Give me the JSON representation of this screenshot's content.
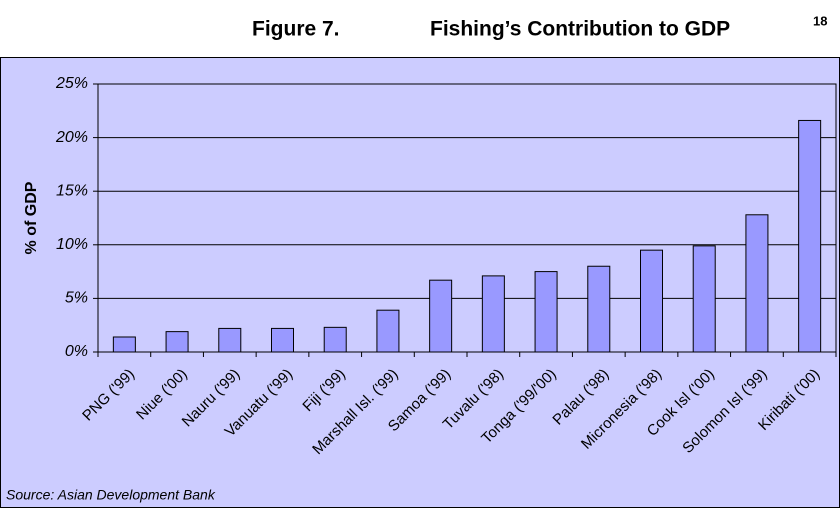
{
  "chart_data": {
    "type": "bar",
    "figure_label": "Figure 7.",
    "title": "Fishing’s Contribution to GDP",
    "title_footnote": "18",
    "ylabel": "% of GDP",
    "source": "Source: Asian Development Bank",
    "categories": [
      "PNG ('99)",
      "Niue ('00)",
      "Nauru ('99)",
      "Vanuatu ('99)",
      "Fiji ('99)",
      "Marshall Isl. ('99)",
      "Samoa ('99)",
      "Tuvalu ('98)",
      "Tonga ('99/'00)",
      "Palau ('98)",
      "Micronesia ('98)",
      "Cook Isl ('00)",
      "Solomon Isl ('99)",
      "Kiribati ('00)"
    ],
    "values": [
      1.4,
      1.9,
      2.2,
      2.2,
      2.3,
      3.9,
      6.7,
      7.1,
      7.5,
      8.0,
      9.5,
      9.9,
      12.8,
      21.6
    ],
    "color": "#9999ff",
    "ylim": [
      0,
      25
    ],
    "yticks": [
      {
        "value": 0,
        "label": "0%"
      },
      {
        "value": 5,
        "label": "5%"
      },
      {
        "value": 10,
        "label": "10%"
      },
      {
        "value": 15,
        "label": "15%"
      },
      {
        "value": 20,
        "label": "20%"
      },
      {
        "value": 25,
        "label": "25%"
      }
    ],
    "grid": true
  }
}
